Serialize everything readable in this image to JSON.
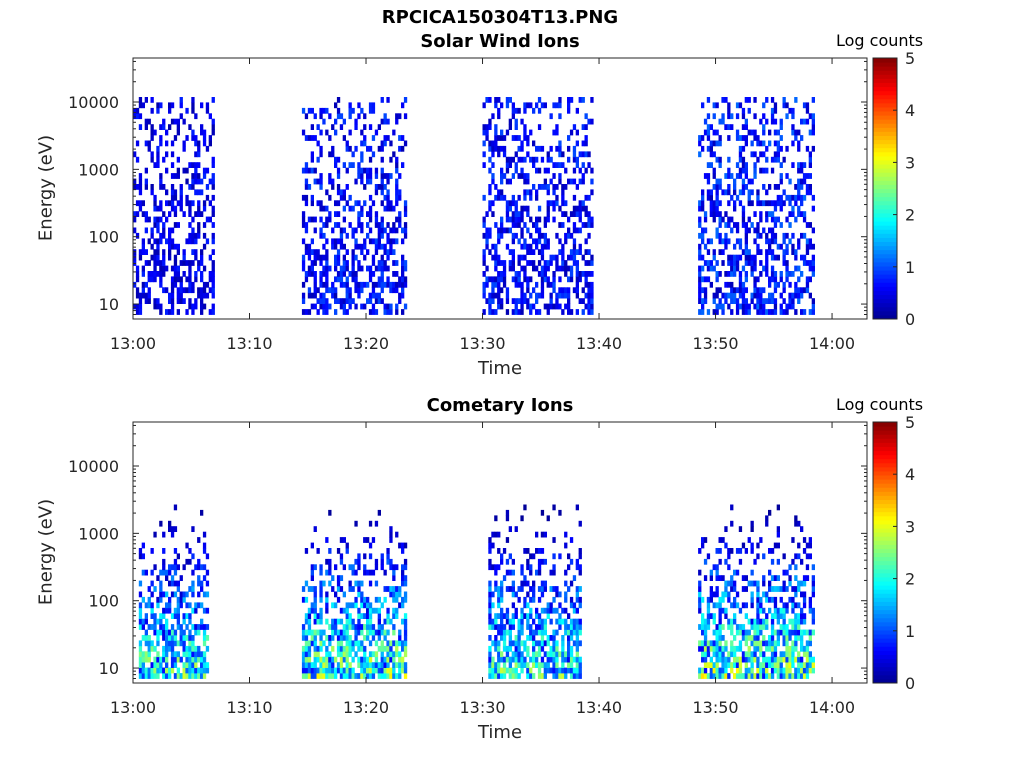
{
  "figure": {
    "title": "RPCICA150304T13.PNG"
  },
  "colormap": {
    "name": "jet",
    "stops": [
      "#00008f",
      "#0000ff",
      "#0080ff",
      "#00ffff",
      "#80ff80",
      "#ffff00",
      "#ff8000",
      "#ff0000",
      "#800000"
    ]
  },
  "chart_data": [
    {
      "type": "heatmap",
      "title": "Solar Wind Ions",
      "xlabel": "Time",
      "ylabel": "Energy (eV)",
      "colorbar_label": "Log counts",
      "x_range": [
        "13:00",
        "14:03"
      ],
      "x_ticks": [
        "13:00",
        "13:10",
        "13:20",
        "13:30",
        "13:40",
        "13:50",
        "14:00"
      ],
      "y_scale": "log",
      "y_range": [
        6,
        45000
      ],
      "y_ticks": [
        10,
        100,
        1000,
        10000
      ],
      "y_tick_labels": [
        "10",
        "100",
        "1000",
        "10000"
      ],
      "colorbar_range": [
        0,
        5
      ],
      "colorbar_ticks": [
        "0",
        "1",
        "2",
        "3",
        "4",
        "5"
      ],
      "time_axis_minutes": [
        0,
        63
      ],
      "bursts": [
        {
          "start": "13:00",
          "end": "13:07",
          "peak_log_counts": 1.6
        },
        {
          "start": "13:14.5",
          "end": "13:23.5",
          "peak_log_counts": 2.0
        },
        {
          "start": "13:30",
          "end": "13:39.5",
          "peak_log_counts": 2.0
        },
        {
          "start": "13:48.5",
          "end": "13:58.5",
          "peak_log_counts": 2.3
        }
      ],
      "energy_extent_eV": [
        7,
        20000
      ]
    },
    {
      "type": "heatmap",
      "title": "Cometary Ions",
      "xlabel": "Time",
      "ylabel": "Energy (eV)",
      "colorbar_label": "Log counts",
      "x_range": [
        "13:00",
        "14:03"
      ],
      "x_ticks": [
        "13:00",
        "13:10",
        "13:20",
        "13:30",
        "13:40",
        "13:50",
        "14:00"
      ],
      "y_scale": "log",
      "y_range": [
        6,
        45000
      ],
      "y_ticks": [
        10,
        100,
        1000,
        10000
      ],
      "y_tick_labels": [
        "10",
        "100",
        "1000",
        "10000"
      ],
      "colorbar_range": [
        0,
        5
      ],
      "colorbar_ticks": [
        "0",
        "1",
        "2",
        "3",
        "4",
        "5"
      ],
      "bursts": [
        {
          "start": "13:00.5",
          "end": "13:06.5",
          "peak_log_counts": 3.0
        },
        {
          "start": "13:14.5",
          "end": "13:23.5",
          "peak_log_counts": 3.3
        },
        {
          "start": "13:30.5",
          "end": "13:38.5",
          "peak_log_counts": 3.0
        },
        {
          "start": "13:48.5",
          "end": "13:58.5",
          "peak_log_counts": 3.3
        }
      ],
      "energy_extent_eV": [
        7,
        2500
      ]
    }
  ]
}
